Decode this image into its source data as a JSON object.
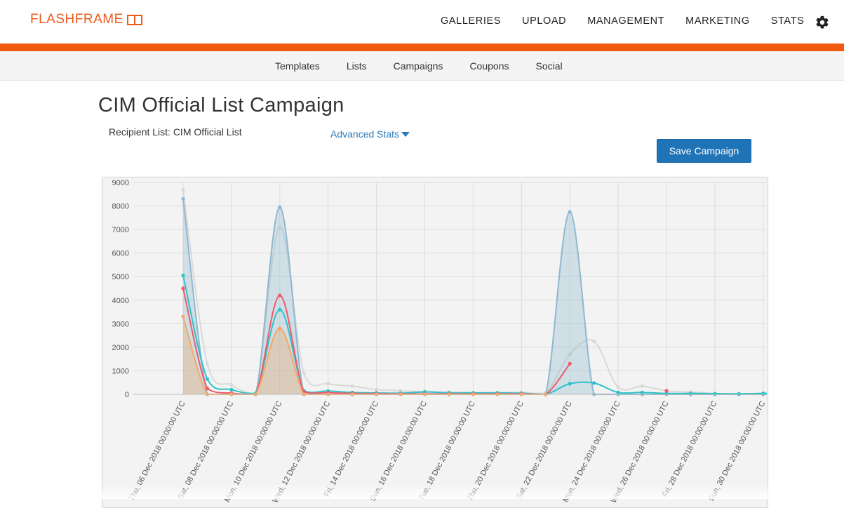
{
  "brand": {
    "logo_text": "FLASHFRAME",
    "accent": "#f15a0e",
    "primary": "#1f73b7"
  },
  "nav": {
    "items": [
      {
        "id": "galleries",
        "label": "GALLERIES"
      },
      {
        "id": "upload",
        "label": "UPLOAD"
      },
      {
        "id": "management",
        "label": "MANAGEMENT"
      },
      {
        "id": "marketing",
        "label": "MARKETING"
      },
      {
        "id": "stats",
        "label": "STATS"
      }
    ],
    "settings_icon": "gear-icon"
  },
  "subnav": {
    "items": [
      {
        "id": "templates",
        "label": "Templates"
      },
      {
        "id": "lists",
        "label": "Lists"
      },
      {
        "id": "campaigns",
        "label": "Campaigns"
      },
      {
        "id": "coupons",
        "label": "Coupons"
      },
      {
        "id": "social",
        "label": "Social"
      }
    ]
  },
  "page": {
    "title": "CIM Official List Campaign",
    "recipient_list": "Recipient List: CIM Official List",
    "advanced_stats": "Advanced Stats",
    "save_button": "Save Campaign"
  },
  "chart_data": {
    "type": "area",
    "ylim": [
      0,
      9000
    ],
    "y_ticks": [
      0,
      1000,
      2000,
      3000,
      4000,
      5000,
      6000,
      7000,
      8000,
      9000
    ],
    "x_ticks": [
      "Thu, 06 Dec 2018 00:00:00 UTC",
      "Sat, 08 Dec 2018 00:00:00 UTC",
      "Mon, 10 Dec 2018 00:00:00 UTC",
      "Wed, 12 Dec 2018 00:00:00 UTC",
      "Fri, 14 Dec 2018 00:00:00 UTC",
      "Sun, 16 Dec 2018 00:00:00 UTC",
      "Tue, 18 Dec 2018 00:00:00 UTC",
      "Thu, 20 Dec 2018 00:00:00 UTC",
      "Sat, 22 Dec 2018 00:00:00 UTC",
      "Mon, 24 Dec 2018 00:00:00 UTC",
      "Wed, 26 Dec 2018 00:00:00 UTC",
      "Fri, 28 Dec 2018 00:00:00 UTC",
      "Sun, 30 Dec 2018 00:00:00 UTC"
    ],
    "x_dates": [
      "2018-12-06",
      "2018-12-07",
      "2018-12-08",
      "2018-12-09",
      "2018-12-10",
      "2018-12-11",
      "2018-12-12",
      "2018-12-13",
      "2018-12-14",
      "2018-12-15",
      "2018-12-16",
      "2018-12-17",
      "2018-12-18",
      "2018-12-19",
      "2018-12-20",
      "2018-12-21",
      "2018-12-22",
      "2018-12-23",
      "2018-12-24",
      "2018-12-25",
      "2018-12-26",
      "2018-12-27",
      "2018-12-28",
      "2018-12-29",
      "2018-12-30",
      "2018-12-31"
    ],
    "grid": true,
    "series": [
      {
        "color": "#d9d9d9",
        "fill": false,
        "values": [
          8700,
          1300,
          400,
          50,
          7100,
          900,
          450,
          350,
          200,
          150,
          120,
          100,
          80,
          80,
          80,
          60,
          1700,
          2250,
          300,
          350,
          150,
          100,
          30,
          30,
          30,
          30
        ]
      },
      {
        "color": "#8fb8cf",
        "fill": true,
        "values": [
          8300,
          0,
          0,
          0,
          7950,
          0,
          0,
          0,
          0,
          0,
          0,
          0,
          0,
          0,
          0,
          0,
          7750,
          0,
          0,
          0,
          0,
          0,
          0,
          0,
          0,
          0
        ]
      },
      {
        "color": "#2cc3c8",
        "fill": false,
        "values": [
          5050,
          650,
          200,
          50,
          3600,
          150,
          140,
          80,
          60,
          50,
          100,
          60,
          60,
          60,
          50,
          0,
          450,
          480,
          80,
          80,
          40,
          40,
          30,
          20,
          40,
          40
        ]
      },
      {
        "color": "#ef5a6a",
        "fill": false,
        "values": [
          4500,
          250,
          50,
          0,
          4200,
          100,
          70,
          40,
          30,
          20,
          20,
          20,
          20,
          20,
          20,
          0,
          1300,
          null,
          null,
          null,
          150,
          null,
          null,
          null,
          null,
          null
        ]
      },
      {
        "color": "#f2a86a",
        "fill": true,
        "values": [
          3300,
          0,
          0,
          0,
          2800,
          0,
          0,
          0,
          0,
          0,
          0,
          0,
          0,
          0,
          0,
          0,
          null,
          null,
          null,
          null,
          null,
          null,
          null,
          null,
          null,
          null
        ]
      }
    ]
  }
}
